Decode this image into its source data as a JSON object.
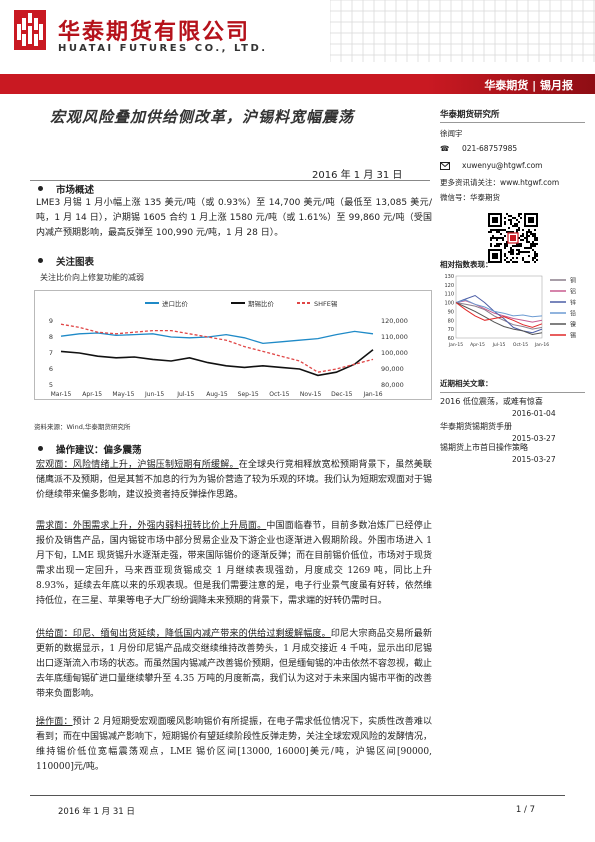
{
  "header": {
    "brand_cn": "华泰期货有限公司",
    "brand_en": "HUATAI FUTURES CO., LTD.",
    "report_tag": "华泰期货 | 锡月报"
  },
  "title": "宏观风险叠加供给侧改革，沪锡料宽幅震荡",
  "date": "2016 年 1 月 31 日",
  "sections": {
    "market": {
      "title": "市场概述",
      "text": "LME3 月锡 1 月小幅上涨 135 美元/吨（或 0.93%）至 14,700 美元/吨（最低至 13,085 美元/吨，1 月 14 日），沪期锡 1605 合约 1 月上涨 1580 元/吨（或 1.61%）至 99,860 元/吨（受国内减产预期影响，最高反弹至 100,990 元/吨，1 月 28 日）。"
    },
    "chart_section": {
      "title": "关注图表",
      "caption": "关注比价向上修复功能的减弱",
      "source": "资料来源：Wind,华泰期货研究所"
    },
    "advice": {
      "title": "操作建议：偏多震荡",
      "p1_lead": "宏观面：风险情绪上升，沪锡压制短期有所缓解。",
      "p1_rest": "在全球央行竞相释放宽松预期背景下，虽然美联储鹰派不及预期，但是其暂不加息的行为为锡价营造了较为乐观的环境。我们认为短期宏观面对于锡价继续带来偏多影响，建议投资者持反弹操作思路。",
      "p2_lead": "需求面：外围需求上升，外强内弱料扭转比价上升局面。",
      "p2_rest": "中国面临春节，目前多数冶炼厂已经停止报价及销售产品，国内锡锭市场中部分贸易企业及下游企业也逐渐进入假期阶段。外围市场进入 1 月下旬，LME 现货锡升水逐渐走强，带来国际锡价的逐渐反弹；而在目前锡价低位，市场对于现货需求出现一定回升，马来西亚现货锡成交 1 月继续表现强劲，月度成交 1269 吨，同比上升 8.93%，延续去年底以来的乐观表现。但是我们需要注意的是，电子行业景气度虽有好转，依然维持低位，在三星、苹果等电子大厂纷纷调降未来预期的背景下，需求端的好转仍需时日。",
      "p3_lead": "供给面：印尼、缅甸出货延续，降低国内减产带来的供给过剩缓解幅度。",
      "p3_rest": "印尼大宗商品交易所最新更新的数据显示，1 月份印尼锡产品成交继续维持改善势头，1 月成交接近 4 千吨，显示出印尼锡出口逐渐流入市场的状态。而虽然国内锡减产改善锡价预期，但是缅甸锡的冲击依然不容忽视，截止去年底缅甸锡矿进口量继续攀升至 4.35 万吨的月度新高，我们认为这对于未来国内锡市平衡的改善带来负面影响。",
      "p4_lead": "操作面：",
      "p4_rest": "预计 2 月短期受宏观面暖风影响锡价有所提振，在电子需求低位情况下，实质性改善难以看到；而在中国锡减产影响下，短期锡价有望延续阶段性反弹走势，关注全球宏观风险的发酵情况，维持锡价低位宽幅震荡观点，LME 锡价区间[13000, 16000]美元/吨，沪锡区间[90000, 110000]元/吨。"
    }
  },
  "sidebar": {
    "institute": "华泰期货研究所",
    "analyst": "徐闻宇",
    "phone_label": "☎",
    "phone": "021-68757985",
    "email": "xuwenyu@htgwf.com",
    "more_info": "更多资讯请关注：www.htgwf.com",
    "wechat": "微信号：华泰期货",
    "perf_title": "相对指数表现：",
    "recent_title": "近期相关文章：",
    "articles": [
      {
        "title": "2016 低位震荡，或难有惊喜",
        "date": "2016-01-04"
      },
      {
        "title": "华泰期货锡期货手册",
        "date": "2015-03-27"
      },
      {
        "title": "锡期货上市首日操作策略",
        "date": "2015-03-27"
      }
    ]
  },
  "footer": {
    "date": "2016 年 1 月 31 日",
    "page": "1 / 7"
  },
  "colors": {
    "brand_red": "#c91922",
    "series_ratio": "#1f8ac7",
    "series_futures": "#111111",
    "series_shfe": "#e04646"
  },
  "chart_data": [
    {
      "type": "line",
      "title": "",
      "legend": [
        "进口比价",
        "期锡比价",
        "SHFE锡"
      ],
      "x_ticks": [
        "Mar-15",
        "Apr-15",
        "May-15",
        "Jun-15",
        "Jul-15",
        "Aug-15",
        "Sep-15",
        "Oct-15",
        "Nov-15",
        "Dec-15",
        "Jan-16"
      ],
      "y_left_ticks": [
        "5",
        "6",
        "7",
        "8",
        "9"
      ],
      "y_right_ticks": [
        "80,000",
        "90,000",
        "100,000",
        "110,000",
        "120,000"
      ],
      "ylim_left": [
        5,
        9.5
      ],
      "ylim_right": [
        80000,
        125000
      ],
      "legend_position": "top",
      "series": [
        {
          "name": "进口比价",
          "axis": "left",
          "values": [
            8.05,
            8.2,
            8.25,
            8.1,
            8.15,
            8.2,
            8.0,
            7.95,
            8.0,
            8.15,
            7.95,
            7.6,
            7.7,
            7.8,
            7.9,
            8.15,
            8.35,
            8.2
          ]
        },
        {
          "name": "期锡比价",
          "axis": "left",
          "values": [
            7.1,
            7.0,
            6.8,
            6.7,
            6.75,
            6.6,
            6.5,
            6.7,
            6.4,
            6.2,
            6.1,
            6.2,
            6.1,
            6.0,
            5.6,
            5.8,
            6.3,
            7.2
          ]
        },
        {
          "name": "SHFE锡",
          "axis": "right",
          "values": [
            118000,
            116000,
            113000,
            112000,
            113000,
            114000,
            114000,
            112000,
            110000,
            108000,
            104000,
            101000,
            98000,
            95000,
            88000,
            90000,
            93000,
            96000
          ]
        }
      ]
    },
    {
      "type": "line",
      "title": "",
      "x_ticks": [
        "Jan-15",
        "Apr-15",
        "Jul-15",
        "Oct-15",
        "Jan-16"
      ],
      "y_ticks": [
        "60",
        "70",
        "80",
        "90",
        "100",
        "110",
        "120",
        "130"
      ],
      "ylim": [
        60,
        130
      ],
      "legend_position": "right",
      "series": [
        {
          "name": "铜",
          "color": "#8b7d8b",
          "values": [
            100,
            98,
            96,
            92,
            85,
            80,
            75,
            73,
            70,
            72
          ]
        },
        {
          "name": "铝",
          "color": "#c85b8f",
          "values": [
            100,
            102,
            98,
            93,
            88,
            85,
            82,
            80,
            78,
            80
          ]
        },
        {
          "name": "锌",
          "color": "#4b5da6",
          "values": [
            100,
            104,
            108,
            100,
            90,
            82,
            72,
            68,
            66,
            70
          ]
        },
        {
          "name": "铅",
          "color": "#6c9bd2",
          "values": [
            100,
            103,
            98,
            95,
            90,
            88,
            85,
            86,
            84,
            85
          ]
        },
        {
          "name": "镍",
          "color": "#555555",
          "values": [
            100,
            95,
            90,
            84,
            78,
            73,
            70,
            68,
            64,
            66
          ]
        },
        {
          "name": "锡",
          "color": "#e02828",
          "values": [
            100,
            92,
            85,
            80,
            82,
            84,
            80,
            75,
            72,
            76
          ]
        }
      ]
    }
  ]
}
